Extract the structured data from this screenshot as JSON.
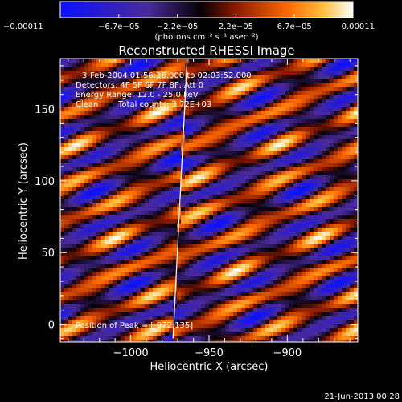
{
  "chart_data": {
    "type": "heatmap",
    "title": "Reconstructed RHESSI Image",
    "xlabel": "Heliocentric X (arcsec)",
    "ylabel": "Heliocentric Y (arcsec)",
    "xlim": [
      -1045,
      -855
    ],
    "ylim": [
      -12,
      185
    ],
    "x_ticks": [
      {
        "value": -1000,
        "label": "−1000"
      },
      {
        "value": -950,
        "label": "−950"
      },
      {
        "value": -900,
        "label": "−900"
      }
    ],
    "y_ticks": [
      {
        "value": 0,
        "label": "0"
      },
      {
        "value": 50,
        "label": "50"
      },
      {
        "value": 100,
        "label": "100"
      },
      {
        "value": 150,
        "label": "150"
      }
    ],
    "colorbar": {
      "min": -0.00011,
      "max": 0.00011,
      "tick_labels": [
        "−0.00011",
        "−6.7e−05",
        "−2.2e−05",
        "2.2e−05",
        "6.7e−05",
        "0.00011"
      ],
      "units_label": "(photons cm⁻² s⁻¹ asec⁻²)",
      "colors": [
        "#0a10ff",
        "#5b2ea0",
        "#000000",
        "#8a1f00",
        "#ff7a10",
        "#ffffff"
      ]
    },
    "annotations": {
      "time_range": "3-Feb-2004 01:58:36.000 to 02:03:52.000",
      "detectors": "Detectors: 4F 5F 6F 7F 8F, Att 0",
      "energy": "Energy Range: 12.0 - 25.0 keV",
      "clean": "Clean",
      "total_counts": "Total counts: 3.72E+03",
      "peak_position": "Position of Peak = [-972,135]"
    },
    "limb_line": {
      "x": [
        -973,
        -964
      ],
      "y": [
        -10,
        185
      ]
    },
    "pattern": {
      "description_free": true,
      "stripe_angle_deg": 24,
      "period_arcsec": 23
    }
  },
  "footer": {
    "date": "21-Jun-2013 00:28"
  }
}
